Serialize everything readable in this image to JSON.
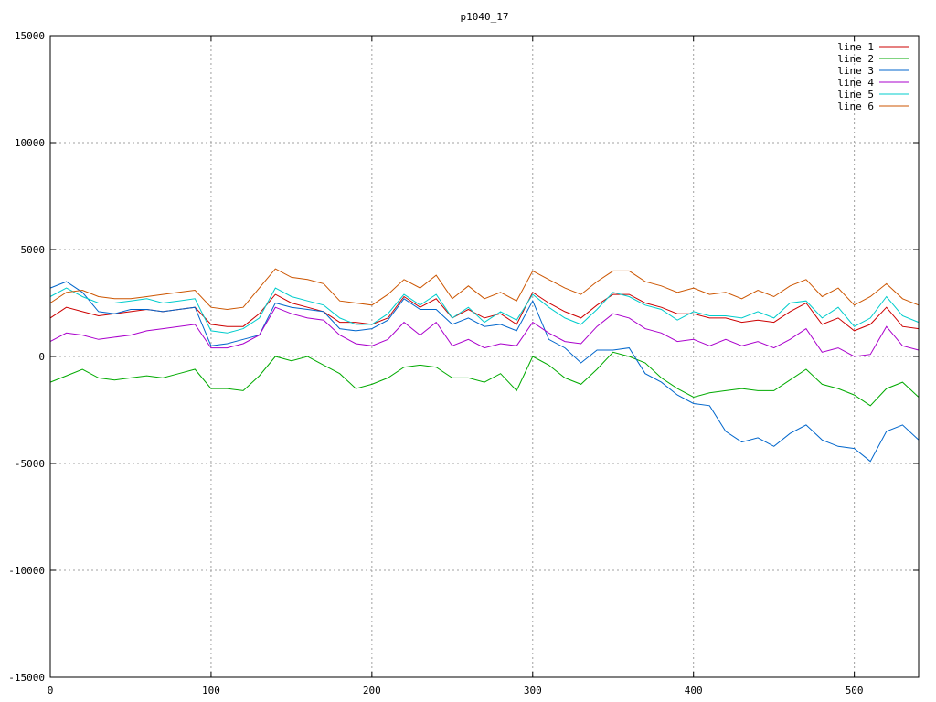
{
  "chart_data": {
    "type": "line",
    "title": "p1040_17",
    "xlabel": "",
    "ylabel": "",
    "xlim": [
      0,
      540
    ],
    "ylim": [
      -15000,
      15000
    ],
    "grid": true,
    "legend_position": "top-right",
    "x_ticks": [
      0,
      100,
      200,
      300,
      400,
      500
    ],
    "y_ticks": [
      -15000,
      -10000,
      -5000,
      0,
      5000,
      10000,
      15000
    ],
    "x_tick_labels": [
      "0",
      "100",
      "200",
      "300",
      "400",
      "500"
    ],
    "y_tick_labels": [
      "-15000",
      "-10000",
      "-5000",
      "0",
      "5000",
      "10000",
      "15000"
    ],
    "x": [
      0,
      10,
      20,
      30,
      40,
      50,
      60,
      70,
      80,
      90,
      100,
      110,
      120,
      130,
      140,
      150,
      160,
      170,
      180,
      190,
      200,
      210,
      220,
      230,
      240,
      250,
      260,
      270,
      280,
      290,
      300,
      310,
      320,
      330,
      340,
      350,
      360,
      370,
      380,
      390,
      400,
      410,
      420,
      430,
      440,
      450,
      460,
      470,
      480,
      490,
      500,
      510,
      520,
      530,
      540
    ],
    "series": [
      {
        "name": "line 1",
        "color": "#cc0000",
        "values": [
          1800,
          2300,
          2100,
          1900,
          2000,
          2100,
          2200,
          2100,
          2200,
          2300,
          1500,
          1400,
          1400,
          2000,
          2900,
          2500,
          2300,
          2100,
          1600,
          1600,
          1500,
          1800,
          2800,
          2300,
          2700,
          1800,
          2200,
          1800,
          2000,
          1500,
          3000,
          2500,
          2100,
          1800,
          2400,
          2900,
          2900,
          2500,
          2300,
          2000,
          2000,
          1800,
          1800,
          1600,
          1700,
          1600,
          2100,
          2500,
          1500,
          1800,
          1200,
          1500,
          2300,
          1400,
          1300
        ]
      },
      {
        "name": "line 2",
        "color": "#00aa00",
        "values": [
          -1200,
          -900,
          -600,
          -1000,
          -1100,
          -1000,
          -900,
          -1000,
          -800,
          -600,
          -1500,
          -1500,
          -1600,
          -900,
          0,
          -200,
          0,
          -400,
          -800,
          -1500,
          -1300,
          -1000,
          -500,
          -400,
          -500,
          -1000,
          -1000,
          -1200,
          -800,
          -1600,
          0,
          -400,
          -1000,
          -1300,
          -600,
          200,
          0,
          -300,
          -1000,
          -1500,
          -1900,
          -1700,
          -1600,
          -1500,
          -1600,
          -1600,
          -1100,
          -600,
          -1300,
          -1500,
          -1800,
          -2300,
          -1500,
          -1200,
          -1900
        ]
      },
      {
        "name": "line 3",
        "color": "#0066cc",
        "values": [
          3200,
          3500,
          3000,
          2100,
          2000,
          2200,
          2200,
          2100,
          2200,
          2300,
          500,
          600,
          800,
          1000,
          2500,
          2300,
          2200,
          2100,
          1300,
          1200,
          1300,
          1700,
          2700,
          2200,
          2200,
          1500,
          1800,
          1400,
          1500,
          1200,
          2600,
          800,
          400,
          -300,
          300,
          300,
          400,
          -800,
          -1200,
          -1800,
          -2200,
          -2300,
          -3500,
          -4000,
          -3800,
          -4200,
          -3600,
          -3200,
          -3900,
          -4200,
          -4300,
          -4900,
          -3500,
          -3200,
          -3900
        ]
      },
      {
        "name": "line 4",
        "color": "#aa00cc",
        "values": [
          700,
          1100,
          1000,
          800,
          900,
          1000,
          1200,
          1300,
          1400,
          1500,
          400,
          400,
          600,
          1000,
          2300,
          2000,
          1800,
          1700,
          1000,
          600,
          500,
          800,
          1600,
          1000,
          1600,
          500,
          800,
          400,
          600,
          500,
          1600,
          1100,
          700,
          600,
          1400,
          2000,
          1800,
          1300,
          1100,
          700,
          800,
          500,
          800,
          500,
          700,
          400,
          800,
          1300,
          200,
          400,
          0,
          100,
          1400,
          500,
          300
        ]
      },
      {
        "name": "line 5",
        "color": "#00cccc",
        "values": [
          2800,
          3200,
          2800,
          2500,
          2500,
          2600,
          2700,
          2500,
          2600,
          2700,
          1200,
          1100,
          1300,
          1800,
          3200,
          2800,
          2600,
          2400,
          1800,
          1500,
          1500,
          2000,
          2900,
          2400,
          2900,
          1800,
          2300,
          1600,
          2100,
          1700,
          2900,
          2300,
          1800,
          1500,
          2200,
          3000,
          2800,
          2400,
          2200,
          1700,
          2100,
          1900,
          1900,
          1800,
          2100,
          1800,
          2500,
          2600,
          1800,
          2300,
          1400,
          1800,
          2800,
          1900,
          1600
        ]
      },
      {
        "name": "line 6",
        "color": "#cc5500",
        "values": [
          2500,
          3000,
          3100,
          2800,
          2700,
          2700,
          2800,
          2900,
          3000,
          3100,
          2300,
          2200,
          2300,
          3200,
          4100,
          3700,
          3600,
          3400,
          2600,
          2500,
          2400,
          2900,
          3600,
          3200,
          3800,
          2700,
          3300,
          2700,
          3000,
          2600,
          4000,
          3600,
          3200,
          2900,
          3500,
          4000,
          4000,
          3500,
          3300,
          3000,
          3200,
          2900,
          3000,
          2700,
          3100,
          2800,
          3300,
          3600,
          2800,
          3200,
          2400,
          2800,
          3400,
          2700,
          2400
        ]
      }
    ]
  }
}
